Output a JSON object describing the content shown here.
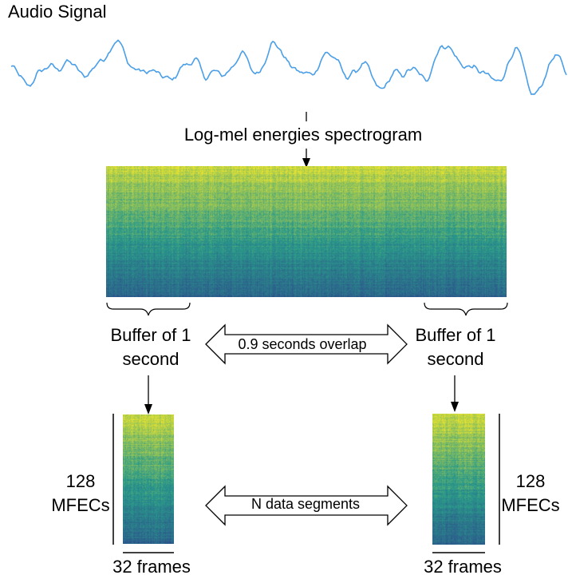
{
  "title": "Audio Signal",
  "spectrogram_label": "Log-mel energies spectrogram",
  "buffer_left": {
    "line1": "Buffer of 1",
    "line2": "second"
  },
  "buffer_right": {
    "line1": "Buffer of 1",
    "line2": "second"
  },
  "overlap_label": "0.9 seconds overlap",
  "segments_label": "N data segments",
  "mfec_left": {
    "line1": "128",
    "line2": "MFECs"
  },
  "mfec_right": {
    "line1": "128",
    "line2": "MFECs"
  },
  "frames_left": "32 frames",
  "frames_right": "32 frames",
  "colors": {
    "waveform": "#4a9fe8",
    "spectrogram_high": "#e8e330",
    "spectrogram_mid": "#2a9a8a",
    "spectrogram_low": "#2c4a8c"
  }
}
